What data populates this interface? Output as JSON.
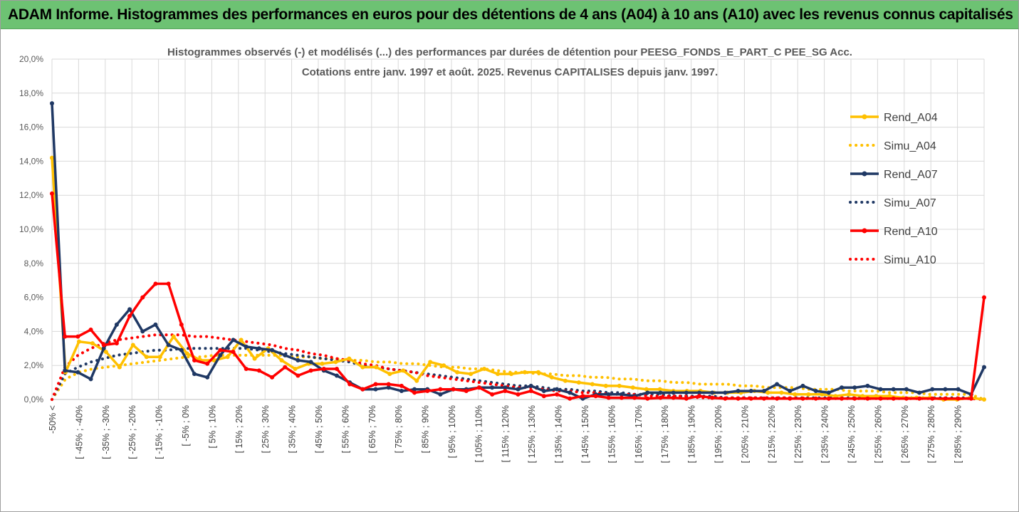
{
  "header": {
    "banner": "ADAM Informe. Histogrammes des performances en euros pour des détentions de 4 ans (A04) à 10 ans (A10) avec les revenus connus capitalisés"
  },
  "colors": {
    "banner_bg": "#6dc273",
    "A04": "#ffc000",
    "A07": "#1f3864",
    "A10": "#ff0000",
    "grid": "#d9d9d9"
  },
  "chart_data": {
    "type": "line",
    "title_line1": "Histogrammes observés (-) et modélisés (...) des performances par durées de détention pour PEESG_FONDS_E_PART_C PEE_SG Acc.",
    "title_line2": "Cotations entre janv. 1997 et août. 2025. Revenus CAPITALISES depuis janv. 1997.",
    "ylim": [
      0,
      20
    ],
    "y_unit": "%",
    "yticks": [
      "0,0%",
      "2,0%",
      "4,0%",
      "6,0%",
      "8,0%",
      "10,0%",
      "12,0%",
      "14,0%",
      "16,0%",
      "18,0%",
      "20,0%"
    ],
    "grid": true,
    "legend_position": "right",
    "x_tick_labels": [
      "-50% <",
      "[ -45% ; -40%",
      "[ -35% ; -30%",
      "[ -25% ; -20%",
      "[ -15% ; -10%",
      "[ -5% ; 0%",
      "[ 5% ; 10%",
      "[ 15% ; 20%",
      "[ 25% ; 30%",
      "[ 35% ; 40%",
      "[ 45% ; 50%",
      "[ 55% ; 60%",
      "[ 65% ; 70%",
      "[ 75% ; 80%",
      "[ 85% ; 90%",
      "[ 95% ; 100%",
      "[ 105% ; 110%",
      "[ 115% ; 120%",
      "[ 125% ; 130%",
      "[ 135% ; 140%",
      "[ 145% ; 150%",
      "[ 155% ; 160%",
      "[ 165% ; 170%",
      "[ 175% ; 180%",
      "[ 185% ; 190%",
      "[ 195% ; 200%",
      "[ 205% ; 210%",
      "[ 215% ; 220%",
      "[ 225% ; 230%",
      "[ 235% ; 240%",
      "[ 245% ; 250%",
      "[ 255% ; 260%",
      "[ 265% ; 270%",
      "[ 275% ; 280%",
      "[ 285% ; 290%"
    ],
    "series": [
      {
        "name": "Rend_A04",
        "style": "solid",
        "color": "#ffc000",
        "values": [
          14.2,
          1.6,
          3.4,
          3.3,
          2.8,
          1.9,
          3.2,
          2.5,
          2.5,
          3.7,
          2.7,
          2.3,
          2.3,
          2.5,
          3.5,
          2.4,
          3.0,
          2.3,
          1.8,
          2.1,
          2.1,
          2.2,
          2.4,
          1.9,
          1.9,
          1.5,
          1.7,
          1.1,
          2.2,
          2.0,
          1.6,
          1.5,
          1.8,
          1.5,
          1.5,
          1.6,
          1.6,
          1.3,
          1.1,
          1.0,
          0.9,
          0.8,
          0.8,
          0.7,
          0.6,
          0.6,
          0.5,
          0.5,
          0.5,
          0.4,
          0.4,
          0.4,
          0.5,
          0.4,
          0.4,
          0.3,
          0.3,
          0.3,
          0.2,
          0.3,
          0.2,
          0.2,
          0.2,
          0.1,
          0.1,
          0.1,
          0.0,
          0.0,
          0.1,
          0.0
        ]
      },
      {
        "name": "Simu_A04",
        "style": "dotted",
        "color": "#ffc000",
        "values": [
          0.0,
          1.2,
          1.6,
          1.8,
          1.9,
          2.0,
          2.1,
          2.2,
          2.3,
          2.4,
          2.5,
          2.5,
          2.6,
          2.6,
          2.6,
          2.6,
          2.6,
          2.6,
          2.5,
          2.5,
          2.4,
          2.4,
          2.3,
          2.3,
          2.2,
          2.2,
          2.1,
          2.1,
          2.0,
          1.9,
          1.9,
          1.8,
          1.8,
          1.7,
          1.6,
          1.6,
          1.5,
          1.5,
          1.4,
          1.4,
          1.3,
          1.3,
          1.2,
          1.2,
          1.1,
          1.1,
          1.0,
          1.0,
          0.9,
          0.9,
          0.9,
          0.8,
          0.8,
          0.7,
          0.7,
          0.7,
          0.6,
          0.6,
          0.6,
          0.5,
          0.5,
          0.5,
          0.4,
          0.4,
          0.4,
          0.3,
          0.3,
          0.3,
          0.3,
          0.0
        ]
      },
      {
        "name": "Rend_A07",
        "style": "solid",
        "color": "#1f3864",
        "values": [
          17.4,
          1.7,
          1.6,
          1.2,
          3.0,
          4.4,
          5.3,
          4.0,
          4.4,
          3.2,
          2.9,
          1.5,
          1.3,
          2.6,
          3.5,
          3.1,
          3.0,
          2.9,
          2.6,
          2.3,
          2.2,
          1.7,
          1.4,
          1.0,
          0.6,
          0.6,
          0.7,
          0.5,
          0.6,
          0.6,
          0.3,
          0.6,
          0.6,
          0.7,
          0.7,
          0.7,
          0.6,
          0.8,
          0.5,
          0.6,
          0.4,
          0.05,
          0.3,
          0.3,
          0.3,
          0.2,
          0.4,
          0.4,
          0.4,
          0.4,
          0.4,
          0.4,
          0.4,
          0.5,
          0.5,
          0.5,
          0.9,
          0.5,
          0.8,
          0.5,
          0.4,
          0.7,
          0.7,
          0.8,
          0.6,
          0.6,
          0.6,
          0.4,
          0.6,
          0.6,
          0.6,
          0.3,
          1.9
        ]
      },
      {
        "name": "Simu_A07",
        "style": "dotted",
        "color": "#1f3864",
        "values": [
          0.0,
          1.5,
          1.9,
          2.2,
          2.4,
          2.6,
          2.7,
          2.8,
          2.9,
          2.9,
          3.0,
          3.0,
          3.0,
          3.0,
          3.0,
          3.0,
          2.9,
          2.8,
          2.7,
          2.6,
          2.5,
          2.4,
          2.3,
          2.2,
          2.0,
          1.9,
          1.8,
          1.7,
          1.6,
          1.5,
          1.4,
          1.3,
          1.2,
          1.1,
          1.0,
          0.9,
          0.8,
          0.8,
          0.7,
          0.6,
          0.6,
          0.5,
          0.5,
          0.4,
          0.4,
          0.3,
          0.3,
          0.3,
          0.2,
          0.2,
          0.2,
          0.2,
          0.1,
          0.1,
          0.1,
          0.1,
          0.1,
          0.1,
          0.1,
          0.1,
          0.1,
          0.1,
          0.1,
          0.1,
          0.1,
          0.1,
          0.1,
          0.1,
          0.1,
          0.1,
          0.1,
          0.1,
          0.0
        ]
      },
      {
        "name": "Rend_A10",
        "style": "solid",
        "color": "#ff0000",
        "values": [
          12.1,
          3.7,
          3.7,
          4.1,
          3.2,
          3.3,
          4.9,
          6.0,
          6.8,
          6.8,
          4.4,
          2.3,
          2.1,
          2.9,
          2.8,
          1.8,
          1.7,
          1.3,
          1.9,
          1.4,
          1.7,
          1.8,
          1.8,
          0.9,
          0.6,
          0.9,
          0.9,
          0.8,
          0.4,
          0.5,
          0.6,
          0.6,
          0.5,
          0.7,
          0.3,
          0.5,
          0.3,
          0.5,
          0.2,
          0.3,
          0.05,
          0.2,
          0.2,
          0.1,
          0.1,
          0.1,
          0.05,
          0.1,
          0.1,
          0.05,
          0.2,
          0.1,
          0.05,
          0.05,
          0.05,
          0.05,
          0.05,
          0.05,
          0.05,
          0.05,
          0.05,
          0.05,
          0.05,
          0.05,
          0.05,
          0.05,
          0.05,
          0.05,
          0.05,
          0.05,
          0.05,
          0.05,
          6.0
        ]
      },
      {
        "name": "Simu_A10",
        "style": "dotted",
        "color": "#ff0000",
        "values": [
          0.0,
          1.9,
          2.6,
          3.0,
          3.3,
          3.5,
          3.6,
          3.7,
          3.8,
          3.8,
          3.8,
          3.7,
          3.7,
          3.6,
          3.5,
          3.4,
          3.3,
          3.2,
          3.0,
          2.9,
          2.7,
          2.6,
          2.4,
          2.3,
          2.1,
          2.0,
          1.8,
          1.7,
          1.6,
          1.4,
          1.3,
          1.2,
          1.1,
          1.0,
          0.9,
          0.8,
          0.7,
          0.7,
          0.6,
          0.5,
          0.5,
          0.4,
          0.4,
          0.3,
          0.3,
          0.3,
          0.2,
          0.2,
          0.2,
          0.2,
          0.1,
          0.1,
          0.1,
          0.1,
          0.1,
          0.1,
          0.1,
          0.1,
          0.05,
          0.05,
          0.05,
          0.05,
          0.05,
          0.05,
          0.05,
          0.05,
          0.05,
          0.05,
          0.05,
          0.05,
          0.05,
          0.05,
          0.0
        ]
      }
    ]
  }
}
